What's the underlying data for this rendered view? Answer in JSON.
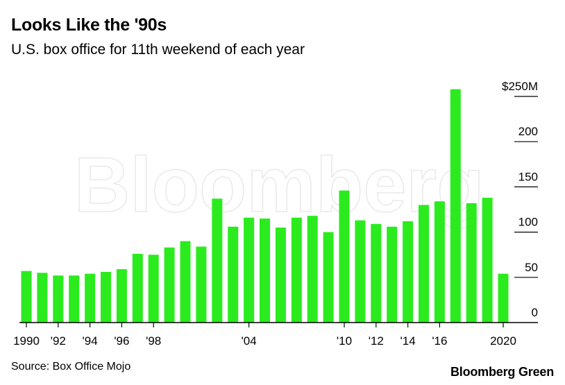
{
  "header": {
    "title": "Looks Like the '90s",
    "subtitle": "U.S. box office for 11th weekend of each year"
  },
  "footer": {
    "source": "Source: Box Office Mojo",
    "brand": "Bloomberg Green"
  },
  "watermark": "Bloomberg",
  "colors": {
    "bar": "#2BEB1F",
    "axis": "#000000",
    "text": "#000000"
  },
  "chart_data": {
    "type": "bar",
    "title": "Looks Like the '90s",
    "subtitle": "U.S. box office for 11th weekend of each year",
    "xlabel": "",
    "ylabel": "",
    "categories": [
      1990,
      1991,
      1992,
      1993,
      1994,
      1995,
      1996,
      1997,
      1998,
      1999,
      2000,
      2001,
      2002,
      2003,
      2004,
      2005,
      2006,
      2007,
      2008,
      2009,
      2010,
      2011,
      2012,
      2013,
      2014,
      2015,
      2016,
      2017,
      2018,
      2019,
      2020
    ],
    "x_tick_labels": [
      {
        "year": 1990,
        "label": "1990"
      },
      {
        "year": 1992,
        "label": "'92"
      },
      {
        "year": 1994,
        "label": "'94"
      },
      {
        "year": 1996,
        "label": "'96"
      },
      {
        "year": 1998,
        "label": "'98"
      },
      {
        "year": 2004,
        "label": "'04"
      },
      {
        "year": 2010,
        "label": "'10"
      },
      {
        "year": 2012,
        "label": "'12"
      },
      {
        "year": 2014,
        "label": "'14"
      },
      {
        "year": 2016,
        "label": "'16"
      },
      {
        "year": 2020,
        "label": "2020"
      }
    ],
    "values": [
      57,
      55,
      52,
      52,
      54,
      56,
      59,
      76,
      75,
      83,
      90,
      84,
      137,
      106,
      116,
      115,
      105,
      116,
      118,
      100,
      146,
      113,
      109,
      106,
      112,
      130,
      134,
      258,
      132,
      138,
      54
    ],
    "y_ticks": [
      {
        "value": 0,
        "label": "0"
      },
      {
        "value": 50,
        "label": "50"
      },
      {
        "value": 100,
        "label": "100"
      },
      {
        "value": 150,
        "label": "150"
      },
      {
        "value": 200,
        "label": "200"
      },
      {
        "value": 250,
        "label": "$250M"
      }
    ],
    "ylim": [
      0,
      250
    ],
    "y_axis_position": "right",
    "grid": false,
    "legend": "none"
  }
}
